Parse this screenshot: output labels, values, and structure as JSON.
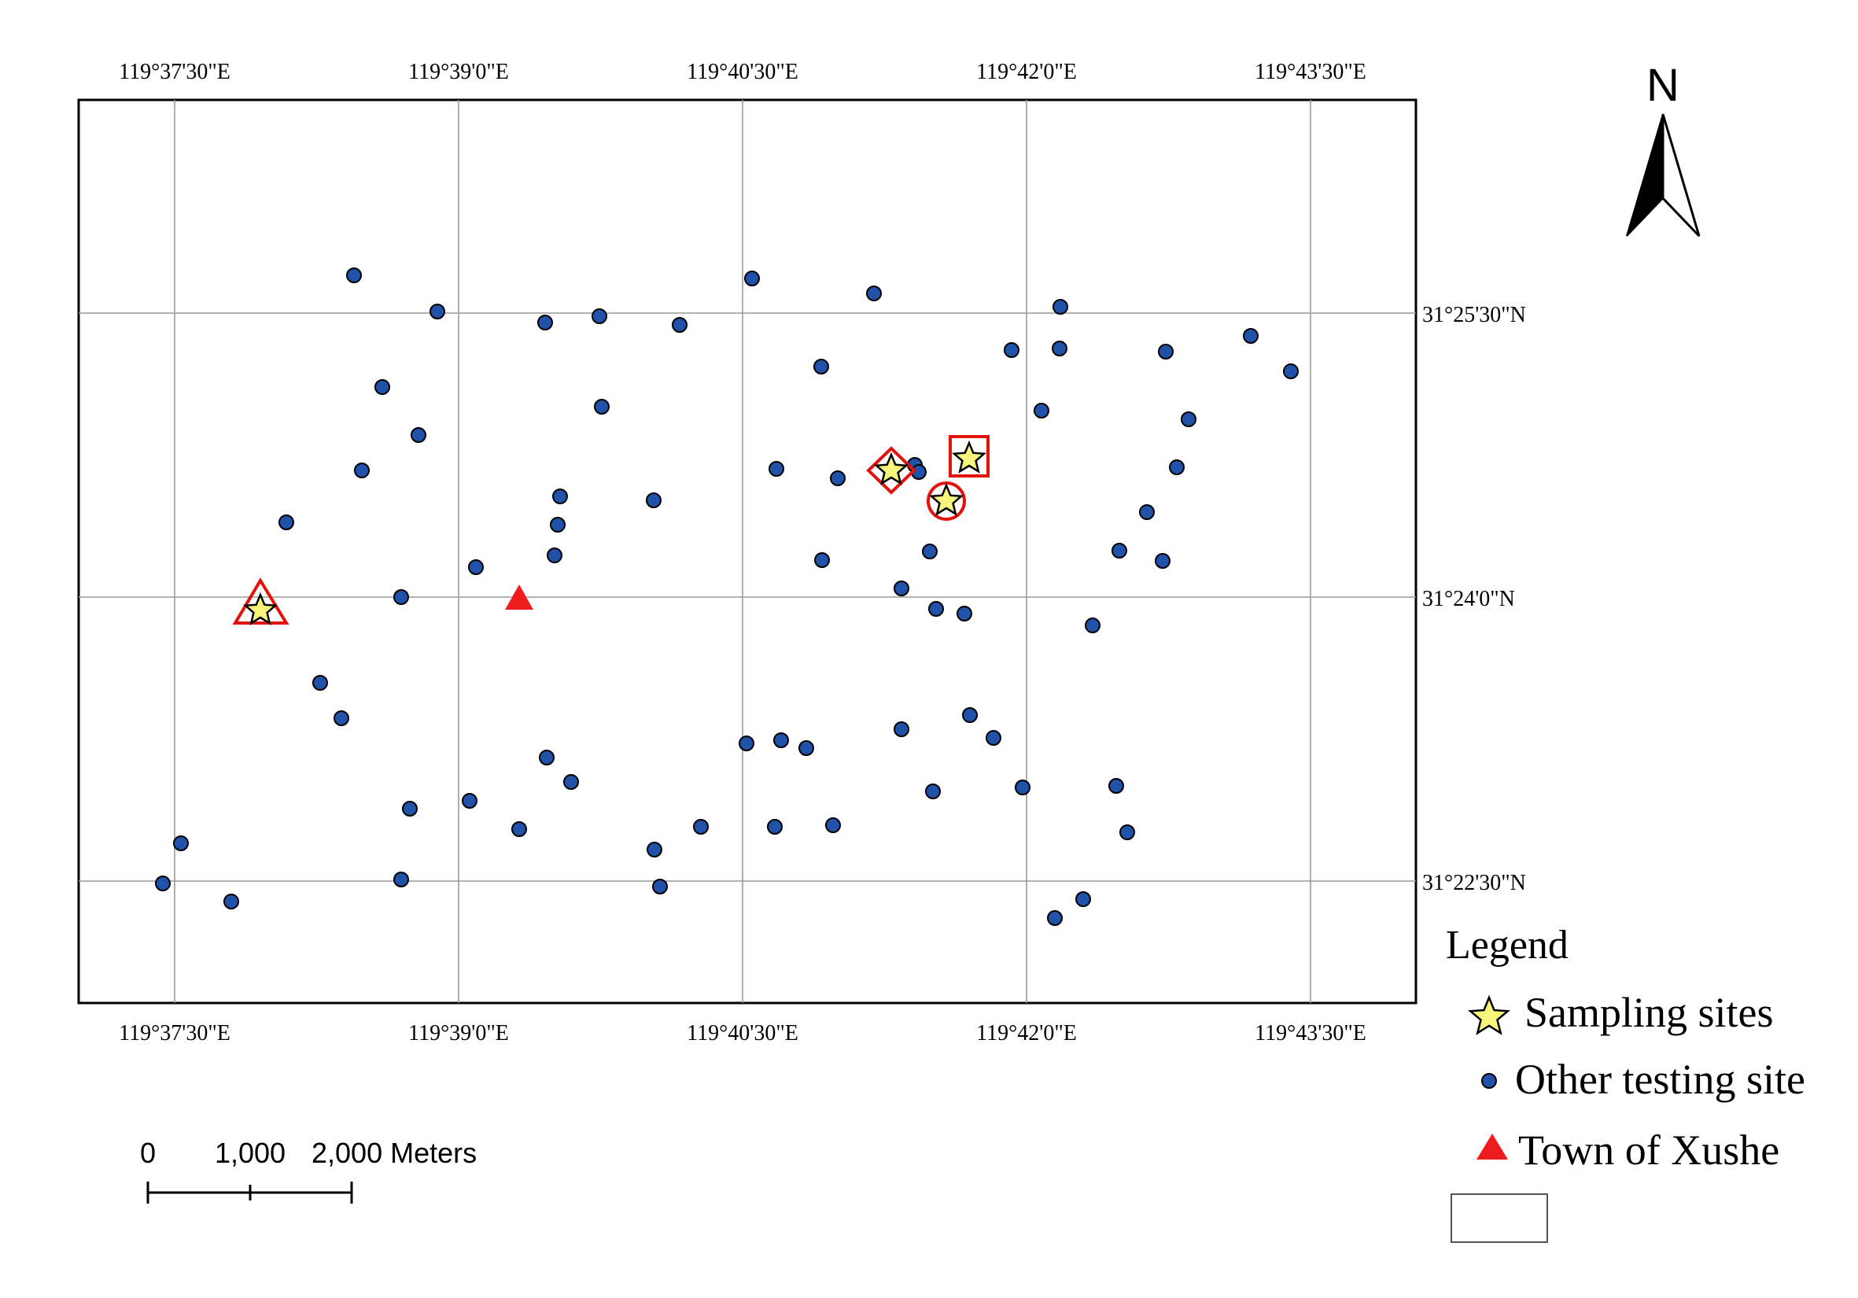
{
  "map": {
    "grid_lon_labels": [
      "119°37'30\"E",
      "119°39'0\"E",
      "119°40'30\"E",
      "119°42'0\"E",
      "119°43'30\"E"
    ],
    "grid_lat_labels": [
      "31°25'30\"N",
      "31°24'0\"N",
      "31°22'30\"N"
    ],
    "north_label": "N",
    "colors": {
      "testing_site_fill": "#1f52a8",
      "sampling_star_fill": "#f6f47a",
      "highlight_red": "#e3120b",
      "town_red": "#ee1c1c",
      "grid": "#9a9a9a"
    },
    "sampling_sites": [
      {
        "id": "s1",
        "lon": "119°37'57\"E",
        "lat": "31°23'56\"N",
        "marker": "triangle"
      },
      {
        "id": "s2",
        "lon": "119°41'14\"E",
        "lat": "31°24'37\"N",
        "marker": "diamond"
      },
      {
        "id": "s3",
        "lon": "119°41'38\"E",
        "lat": "31°24'44\"N",
        "marker": "square"
      },
      {
        "id": "s4",
        "lon": "119°41'31\"E",
        "lat": "31°24'27\"N",
        "marker": "circle"
      }
    ],
    "town": {
      "name": "Xushe",
      "lon": "119°39'19\"E",
      "lat": "31°24'0\"N"
    }
  },
  "legend": {
    "title": "Legend",
    "items": [
      {
        "icon": "star-icon",
        "label": "Sampling sites"
      },
      {
        "icon": "dot-icon",
        "label": "Other testing site"
      },
      {
        "icon": "triangle-icon",
        "label": "Town of Xushe"
      }
    ]
  },
  "scale_bar": {
    "labels": [
      "0",
      "1,000",
      "2,000 Meters"
    ]
  }
}
